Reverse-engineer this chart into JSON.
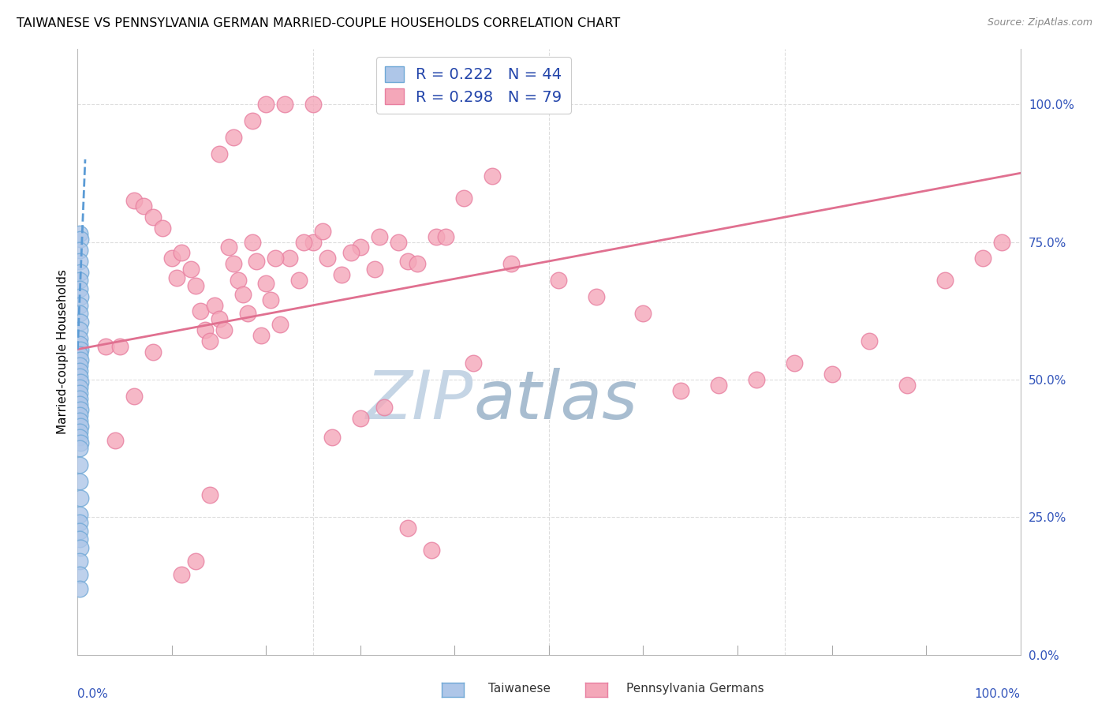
{
  "title": "TAIWANESE VS PENNSYLVANIA GERMAN MARRIED-COUPLE HOUSEHOLDS CORRELATION CHART",
  "source": "Source: ZipAtlas.com",
  "ylabel": "Married-couple Households",
  "x_min": 0.0,
  "x_max": 1.0,
  "y_min": 0.0,
  "y_max": 1.1,
  "y_ticks_right": [
    0.0,
    0.25,
    0.5,
    0.75,
    1.0
  ],
  "y_tick_labels_right": [
    "0.0%",
    "25.0%",
    "50.0%",
    "75.0%",
    "100.0%"
  ],
  "x_tick_ends": [
    "0.0%",
    "100.0%"
  ],
  "legend_r_values": [
    "0.222",
    "0.298"
  ],
  "legend_n_values": [
    "44",
    "79"
  ],
  "taiwanese_color": "#aec6e8",
  "pa_german_color": "#f4a7b9",
  "taiwanese_edge": "#6fa8d6",
  "pa_german_edge": "#e87fa0",
  "trendline_blue": "#5b9bd5",
  "trendline_pink": "#e07090",
  "watermark_zip_color": "#c5d5e5",
  "watermark_atlas_color": "#a8bdd0",
  "grid_color": "#dddddd",
  "taiwanese_x": [
    0.002,
    0.003,
    0.002,
    0.002,
    0.003,
    0.002,
    0.002,
    0.003,
    0.002,
    0.002,
    0.003,
    0.002,
    0.002,
    0.002,
    0.003,
    0.002,
    0.003,
    0.002,
    0.002,
    0.002,
    0.003,
    0.002,
    0.002,
    0.002,
    0.002,
    0.003,
    0.002,
    0.002,
    0.003,
    0.002,
    0.002,
    0.003,
    0.002,
    0.002,
    0.002,
    0.003,
    0.002,
    0.002,
    0.002,
    0.002,
    0.003,
    0.002,
    0.002,
    0.002
  ],
  "taiwanese_y": [
    0.765,
    0.755,
    0.735,
    0.715,
    0.695,
    0.68,
    0.665,
    0.65,
    0.635,
    0.62,
    0.605,
    0.59,
    0.575,
    0.565,
    0.555,
    0.545,
    0.535,
    0.525,
    0.515,
    0.505,
    0.495,
    0.485,
    0.475,
    0.465,
    0.455,
    0.445,
    0.435,
    0.425,
    0.415,
    0.405,
    0.395,
    0.385,
    0.375,
    0.345,
    0.315,
    0.285,
    0.255,
    0.24,
    0.225,
    0.21,
    0.195,
    0.17,
    0.145,
    0.12
  ],
  "pa_german_x": [
    0.03,
    0.045,
    0.06,
    0.07,
    0.08,
    0.09,
    0.1,
    0.105,
    0.11,
    0.12,
    0.125,
    0.13,
    0.135,
    0.14,
    0.145,
    0.15,
    0.155,
    0.16,
    0.165,
    0.17,
    0.175,
    0.18,
    0.185,
    0.19,
    0.195,
    0.2,
    0.205,
    0.215,
    0.225,
    0.235,
    0.25,
    0.265,
    0.28,
    0.3,
    0.32,
    0.35,
    0.38,
    0.42,
    0.46,
    0.51,
    0.55,
    0.6,
    0.64,
    0.68,
    0.72,
    0.76,
    0.8,
    0.84,
    0.88,
    0.92,
    0.96,
    0.98,
    0.21,
    0.24,
    0.26,
    0.29,
    0.315,
    0.34,
    0.36,
    0.39,
    0.41,
    0.44,
    0.15,
    0.165,
    0.185,
    0.2,
    0.22,
    0.25,
    0.27,
    0.3,
    0.325,
    0.35,
    0.375,
    0.11,
    0.125,
    0.14,
    0.08,
    0.06,
    0.04
  ],
  "pa_german_y": [
    0.56,
    0.56,
    0.825,
    0.815,
    0.795,
    0.775,
    0.72,
    0.685,
    0.73,
    0.7,
    0.67,
    0.625,
    0.59,
    0.57,
    0.635,
    0.61,
    0.59,
    0.74,
    0.71,
    0.68,
    0.655,
    0.62,
    0.75,
    0.715,
    0.58,
    0.675,
    0.645,
    0.6,
    0.72,
    0.68,
    0.75,
    0.72,
    0.69,
    0.74,
    0.76,
    0.715,
    0.76,
    0.53,
    0.71,
    0.68,
    0.65,
    0.62,
    0.48,
    0.49,
    0.5,
    0.53,
    0.51,
    0.57,
    0.49,
    0.68,
    0.72,
    0.75,
    0.72,
    0.75,
    0.77,
    0.73,
    0.7,
    0.75,
    0.71,
    0.76,
    0.83,
    0.87,
    0.91,
    0.94,
    0.97,
    1.0,
    1.0,
    1.0,
    0.395,
    0.43,
    0.45,
    0.23,
    0.19,
    0.145,
    0.17,
    0.29,
    0.55,
    0.47,
    0.39
  ],
  "pag_trend_x0": 0.0,
  "pag_trend_y0": 0.555,
  "pag_trend_x1": 1.0,
  "pag_trend_y1": 0.875,
  "tai_trend_x0": 0.0,
  "tai_trend_y0": 0.555,
  "tai_trend_x1": 0.008,
  "tai_trend_y1": 0.9
}
